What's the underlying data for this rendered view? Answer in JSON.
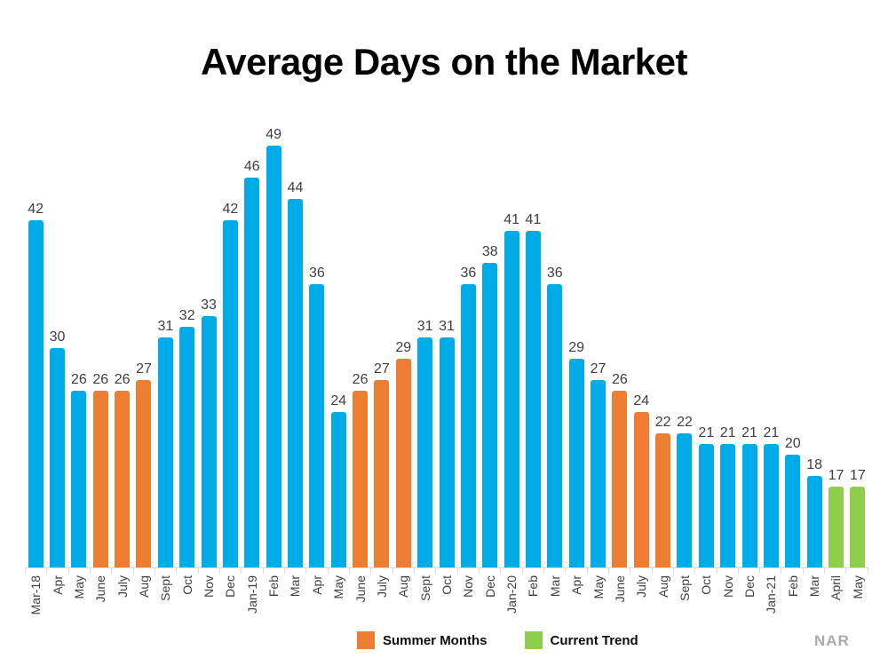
{
  "title": "Average Days on the Market",
  "colors": {
    "default": "#00ACE8",
    "summer": "#ED7D31",
    "current": "#8FCE4A",
    "value_label": "#3F3F3F",
    "axis": "#D9D9D9",
    "source_text": "#ABABAB"
  },
  "legend": {
    "items": [
      {
        "key": "summer",
        "label": "Summer Months",
        "color": "#ED7D31"
      },
      {
        "key": "current",
        "label": "Current Trend",
        "color": "#8FCE4A"
      }
    ]
  },
  "source": "NAR",
  "chart_data": {
    "type": "bar",
    "title": "Average Days on the Market",
    "categories": [
      "Mar-18",
      "Apr",
      "May",
      "June",
      "July",
      "Aug",
      "Sept",
      "Oct",
      "Nov",
      "Dec",
      "Jan-19",
      "Feb",
      "Mar",
      "Apr",
      "May",
      "June",
      "July",
      "Aug",
      "Sept",
      "Oct",
      "Nov",
      "Dec",
      "Jan-20",
      "Feb",
      "Mar",
      "Apr",
      "May",
      "June",
      "July",
      "Aug",
      "Sept",
      "Oct",
      "Nov",
      "Dec",
      "Jan-21",
      "Feb",
      "Mar",
      "April",
      "May"
    ],
    "values": [
      42,
      30,
      26,
      26,
      26,
      27,
      31,
      32,
      33,
      42,
      46,
      49,
      44,
      36,
      24,
      26,
      27,
      29,
      31,
      31,
      36,
      38,
      41,
      41,
      36,
      29,
      27,
      26,
      24,
      22,
      22,
      21,
      21,
      21,
      21,
      20,
      18,
      17,
      17
    ],
    "groups": [
      "default",
      "default",
      "default",
      "summer",
      "summer",
      "summer",
      "default",
      "default",
      "default",
      "default",
      "default",
      "default",
      "default",
      "default",
      "default",
      "summer",
      "summer",
      "summer",
      "default",
      "default",
      "default",
      "default",
      "default",
      "default",
      "default",
      "default",
      "default",
      "summer",
      "summer",
      "summer",
      "default",
      "default",
      "default",
      "default",
      "default",
      "default",
      "default",
      "current",
      "current"
    ],
    "legend": [
      "Summer Months",
      "Current Trend"
    ],
    "legend_position": "bottom",
    "data_labels": true,
    "grid": false,
    "y_axis_visible": false,
    "x_axis_visible": true,
    "ylim_visual": [
      9.4,
      50.5
    ],
    "baseline_clipped": true,
    "source": "NAR"
  }
}
